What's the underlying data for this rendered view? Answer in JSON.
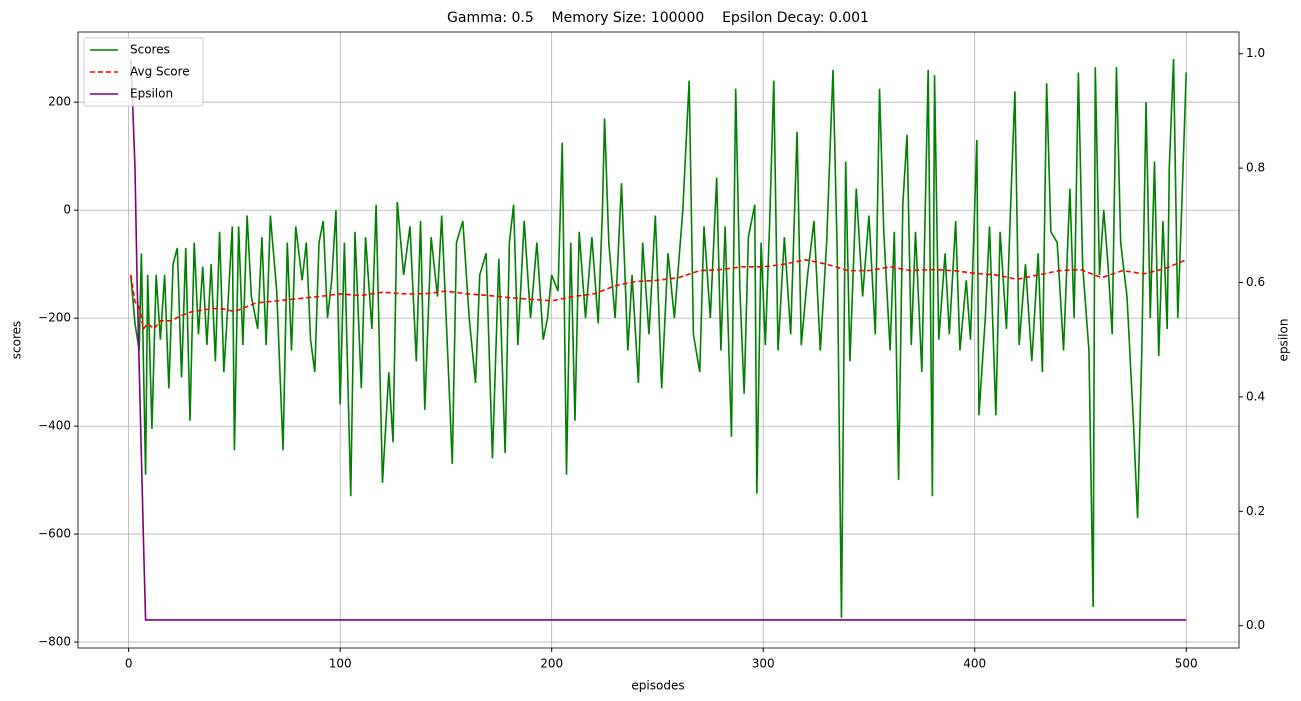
{
  "chart_data": {
    "type": "line",
    "title": "Gamma: 0.5    Memory Size: 100000    Epsilon Decay: 0.001",
    "xlabel": "episodes",
    "ylabel": "scores",
    "y2label": "epsilon",
    "xlim": [
      -23.95,
      524.95
    ],
    "xticks": [
      0,
      100,
      200,
      300,
      400,
      500
    ],
    "ylim": [
      -811,
      330
    ],
    "yticks": [
      {
        "value": -800,
        "label": "−800"
      },
      {
        "value": -600,
        "label": "−600"
      },
      {
        "value": -400,
        "label": "−400"
      },
      {
        "value": -200,
        "label": "−200"
      },
      0,
      200
    ],
    "y2lim": [
      -0.039,
      1.038
    ],
    "y2ticks": [
      {
        "value": 0,
        "label": "0.0"
      },
      {
        "value": 0.2,
        "label": "0.2"
      },
      {
        "value": 0.4,
        "label": "0.4"
      },
      {
        "value": 0.6,
        "label": "0.6"
      },
      {
        "value": 0.8,
        "label": "0.8"
      },
      {
        "value": 1,
        "label": "1.0"
      }
    ],
    "grid": true,
    "legend": "upper left",
    "series": [
      {
        "name": "Scores",
        "color": "#008000",
        "dash": "solid",
        "x": [
          1,
          3,
          5,
          6,
          8,
          9,
          11,
          13,
          15,
          17,
          19,
          21,
          23,
          25,
          27,
          29,
          31,
          33,
          35,
          37,
          39,
          41,
          43,
          45,
          47,
          49,
          50,
          52,
          54,
          56,
          58,
          61,
          63,
          65,
          67,
          70,
          73,
          75,
          77,
          79,
          82,
          84,
          86,
          88,
          90,
          92,
          94,
          96,
          98,
          100,
          102,
          105,
          107,
          110,
          112,
          115,
          117,
          120,
          123,
          125,
          127,
          130,
          133,
          136,
          138,
          140,
          143,
          146,
          148,
          151,
          153,
          155,
          158,
          161,
          164,
          166,
          169,
          172,
          175,
          178,
          180,
          182,
          184,
          187,
          190,
          193,
          196,
          198,
          200,
          203,
          205,
          207,
          209,
          211,
          213,
          216,
          219,
          222,
          224,
          225,
          227,
          230,
          233,
          236,
          238,
          241,
          243,
          246,
          249,
          252,
          255,
          258,
          262,
          265,
          267,
          270,
          272,
          275,
          278,
          280,
          282,
          285,
          287,
          289,
          291,
          293,
          296,
          297,
          299,
          301,
          303,
          305,
          307,
          310,
          313,
          316,
          318,
          321,
          324,
          327,
          330,
          333,
          335,
          337,
          339,
          341,
          344,
          347,
          350,
          353,
          355,
          357,
          360,
          362,
          364,
          366,
          368,
          370,
          372,
          375,
          378,
          380,
          381,
          383,
          386,
          388,
          391,
          393,
          396,
          398,
          401,
          402,
          405,
          407,
          410,
          412,
          415,
          417,
          419,
          421,
          424,
          427,
          430,
          432,
          434,
          436,
          439,
          442,
          445,
          447,
          449,
          451,
          454,
          456,
          457,
          459,
          461,
          463,
          465,
          467,
          469,
          472,
          475,
          477,
          479,
          481,
          483,
          485,
          487,
          489,
          491,
          492,
          494,
          496,
          498,
          500
        ],
        "values": [
          -120,
          -210,
          -260,
          -80,
          -490,
          -120,
          -405,
          -120,
          -240,
          -120,
          -330,
          -100,
          -70,
          -310,
          -70,
          -390,
          -60,
          -230,
          -105,
          -250,
          -100,
          -280,
          -40,
          -300,
          -170,
          -30,
          -445,
          -30,
          -250,
          -10,
          -160,
          -220,
          -50,
          -250,
          -10,
          -150,
          -445,
          -60,
          -260,
          -30,
          -130,
          -60,
          -240,
          -300,
          -60,
          -20,
          -200,
          -130,
          0,
          -360,
          -60,
          -530,
          -40,
          -330,
          -50,
          -220,
          10,
          -505,
          -300,
          -430,
          15,
          -120,
          -30,
          -280,
          -20,
          -370,
          -50,
          -160,
          -10,
          -280,
          -470,
          -60,
          -20,
          -200,
          -320,
          -120,
          -80,
          -460,
          -90,
          -450,
          -60,
          10,
          -250,
          -20,
          -200,
          -60,
          -240,
          -200,
          -120,
          -150,
          125,
          -490,
          -60,
          -390,
          -40,
          -200,
          -50,
          -210,
          0,
          170,
          -60,
          -200,
          50,
          -260,
          -120,
          -320,
          -60,
          -230,
          -10,
          -330,
          -80,
          -200,
          0,
          240,
          -230,
          -300,
          -30,
          -200,
          60,
          -260,
          -30,
          -420,
          225,
          -150,
          -340,
          -50,
          10,
          -525,
          -60,
          -250,
          -30,
          240,
          -260,
          -50,
          -230,
          145,
          -250,
          -120,
          -20,
          -260,
          -60,
          260,
          -80,
          -755,
          90,
          -280,
          40,
          -160,
          -10,
          -230,
          225,
          -40,
          -260,
          -40,
          -500,
          10,
          140,
          -250,
          -40,
          -300,
          260,
          -530,
          250,
          -240,
          -80,
          -230,
          -20,
          -260,
          -130,
          -240,
          130,
          -380,
          -200,
          -30,
          -380,
          -40,
          -220,
          10,
          220,
          -250,
          -100,
          -280,
          -80,
          -300,
          235,
          -40,
          -60,
          -260,
          40,
          -200,
          255,
          -100,
          -260,
          -735,
          265,
          -120,
          0,
          -100,
          -230,
          265,
          -60,
          -160,
          -390,
          -570,
          -260,
          200,
          -200,
          90,
          -270,
          -20,
          -220,
          80,
          280,
          -200,
          20,
          255
        ]
      },
      {
        "name": "Avg Score",
        "color": "#ff0000",
        "dash": "dashed",
        "x": [
          1,
          3,
          5,
          7,
          9,
          12,
          15,
          20,
          25,
          30,
          35,
          40,
          45,
          50,
          55,
          60,
          70,
          80,
          90,
          100,
          110,
          120,
          130,
          140,
          150,
          160,
          170,
          180,
          190,
          200,
          210,
          220,
          230,
          240,
          250,
          260,
          270,
          280,
          290,
          300,
          310,
          320,
          330,
          340,
          350,
          360,
          370,
          380,
          390,
          400,
          410,
          420,
          430,
          440,
          450,
          460,
          470,
          480,
          490,
          500
        ],
        "values": [
          -120,
          -170,
          -180,
          -220,
          -210,
          -220,
          -205,
          -205,
          -195,
          -188,
          -185,
          -182,
          -183,
          -188,
          -180,
          -172,
          -168,
          -164,
          -160,
          -155,
          -158,
          -152,
          -155,
          -155,
          -150,
          -155,
          -158,
          -162,
          -165,
          -168,
          -160,
          -155,
          -140,
          -132,
          -130,
          -125,
          -112,
          -110,
          -105,
          -105,
          -100,
          -92,
          -100,
          -112,
          -112,
          -105,
          -112,
          -110,
          -112,
          -117,
          -120,
          -128,
          -120,
          -112,
          -110,
          -125,
          -112,
          -118,
          -108,
          -92
        ]
      },
      {
        "name": "Epsilon",
        "color": "#800080",
        "dash": "solid",
        "axis": "y2",
        "x": [
          1,
          2,
          3,
          4,
          5,
          6,
          7,
          8,
          500
        ],
        "values": [
          0.99,
          0.9,
          0.8,
          0.6,
          0.45,
          0.3,
          0.15,
          0.01,
          0.01
        ]
      }
    ]
  }
}
